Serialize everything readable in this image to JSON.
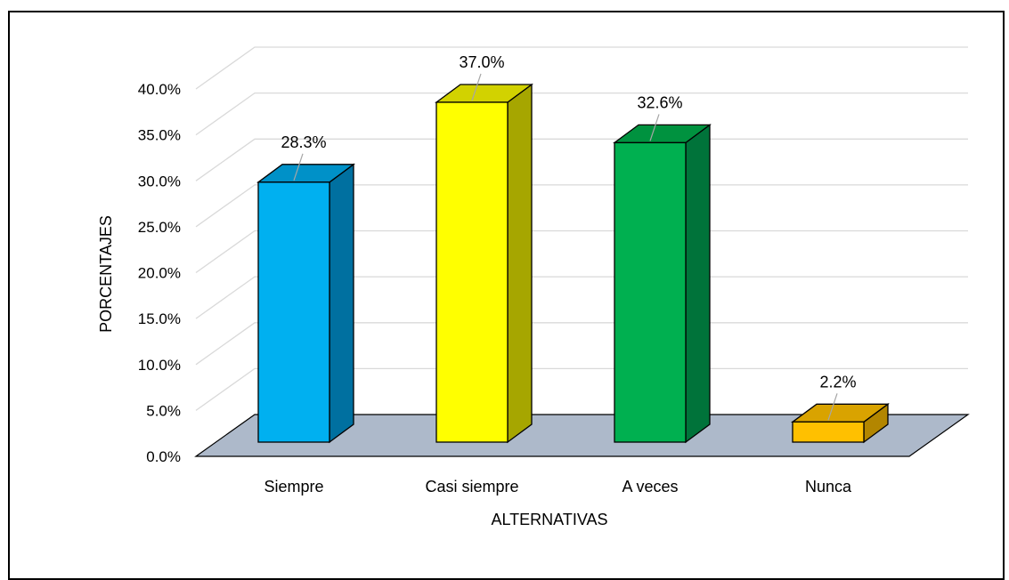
{
  "chart_data": {
    "type": "bar",
    "style": "3d-column",
    "categories": [
      "Siempre",
      "Casi siempre",
      "A veces",
      "Nunca"
    ],
    "values": [
      28.3,
      37.0,
      32.6,
      2.2
    ],
    "value_labels": [
      "28.3%",
      "37.0%",
      "32.6%",
      "2.2%"
    ],
    "xlabel": "ALTERNATIVAS",
    "ylabel": "PORCENTAJES",
    "ylim": [
      0,
      40
    ],
    "yticks": [
      0,
      5,
      10,
      15,
      20,
      25,
      30,
      35,
      40
    ],
    "ytick_labels": [
      "0.0%",
      "5.0%",
      "10.0%",
      "15.0%",
      "20.0%",
      "25.0%",
      "30.0%",
      "35.0%",
      "40.0%"
    ],
    "grid": true,
    "legend": "none",
    "colors": {
      "front": [
        "#00B0F0",
        "#FFFF00",
        "#00B050",
        "#FFC000"
      ],
      "side": [
        "#0070A0",
        "#A6A600",
        "#00733A",
        "#B38600"
      ],
      "top": [
        "#0091C8",
        "#D2D200",
        "#00923F",
        "#D9A300"
      ],
      "floor": "#ADB9CA",
      "gridline": "#D9D9D9"
    }
  }
}
